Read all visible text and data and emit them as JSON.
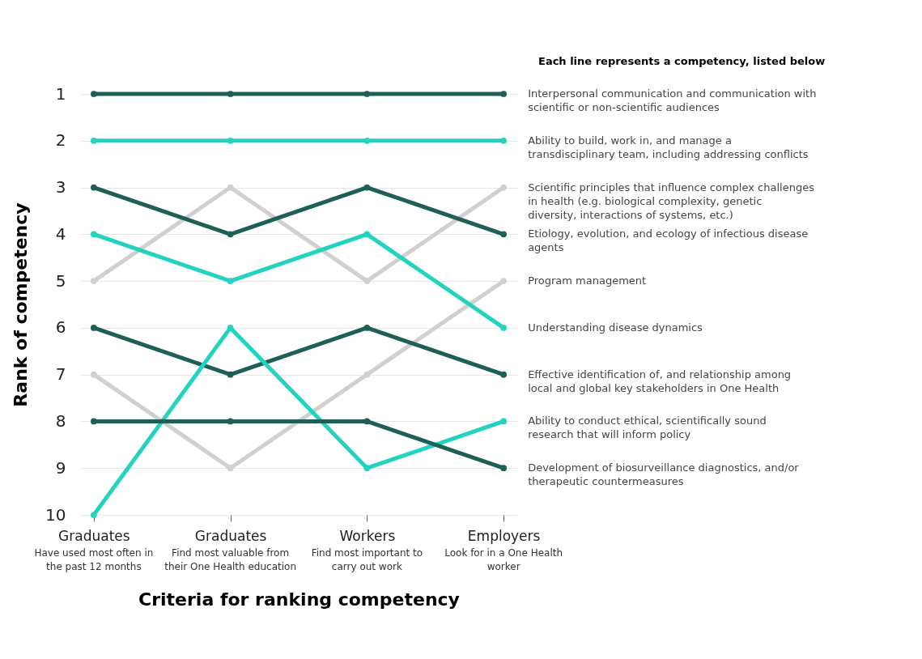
{
  "chart_data": {
    "type": "line",
    "xlabel": "Criteria for ranking competency",
    "ylabel": "Rank of competency",
    "legend_title": "Each line represents a competency, listed below",
    "categories": [
      "Graduates",
      "Graduates",
      "Workers",
      "Employers"
    ],
    "annotations": [
      "Have used most often in the past 12 months",
      "Find most valuable from their One Health education",
      "Find most important to carry out work",
      "Look for in a One Health worker"
    ],
    "ylim": [
      10,
      1
    ],
    "yticks": [
      1,
      2,
      3,
      4,
      5,
      6,
      7,
      8,
      9,
      10
    ],
    "grid": "y",
    "marker": "circle",
    "series": [
      {
        "name": "Interpersonal communication and communication with scientific or non-scientific audiences",
        "color": "#1e5f58",
        "values": [
          1,
          1,
          1,
          1
        ]
      },
      {
        "name": "Ability to build, work in, and manage a transdisciplinary team, including addressing conflicts",
        "color": "#22d3bf",
        "values": [
          2,
          2,
          2,
          2
        ]
      },
      {
        "name": "Scientific principles that influence complex challenges in health (e.g. biological complexity, genetic diversity, interactions of systems, etc.)",
        "color": "#d0d0ce",
        "values": [
          5,
          3,
          5,
          3
        ]
      },
      {
        "name": "Etiology, evolution, and ecology of infectious disease agents",
        "color": "#1e5f58",
        "values": [
          3,
          4,
          3,
          4
        ]
      },
      {
        "name": "Program management",
        "color": "#d0d0ce",
        "values": [
          7,
          9,
          7,
          5
        ]
      },
      {
        "name": "Understanding disease dynamics",
        "color": "#22d3bf",
        "values": [
          4,
          5,
          4,
          6
        ]
      },
      {
        "name": "Effective identification of, and relationship among local and global key stakeholders in One Health",
        "color": "#1e5f58",
        "values": [
          6,
          7,
          6,
          7
        ]
      },
      {
        "name": "Ability to conduct ethical, scientifically sound research that will inform policy",
        "color": "#22d3bf",
        "values": [
          10,
          6,
          9,
          8
        ]
      },
      {
        "name": "Development of biosurveillance diagnostics, and/or therapeutic countermeasures",
        "color": "#1e5f58",
        "values": [
          8,
          8,
          8,
          9
        ]
      }
    ]
  }
}
